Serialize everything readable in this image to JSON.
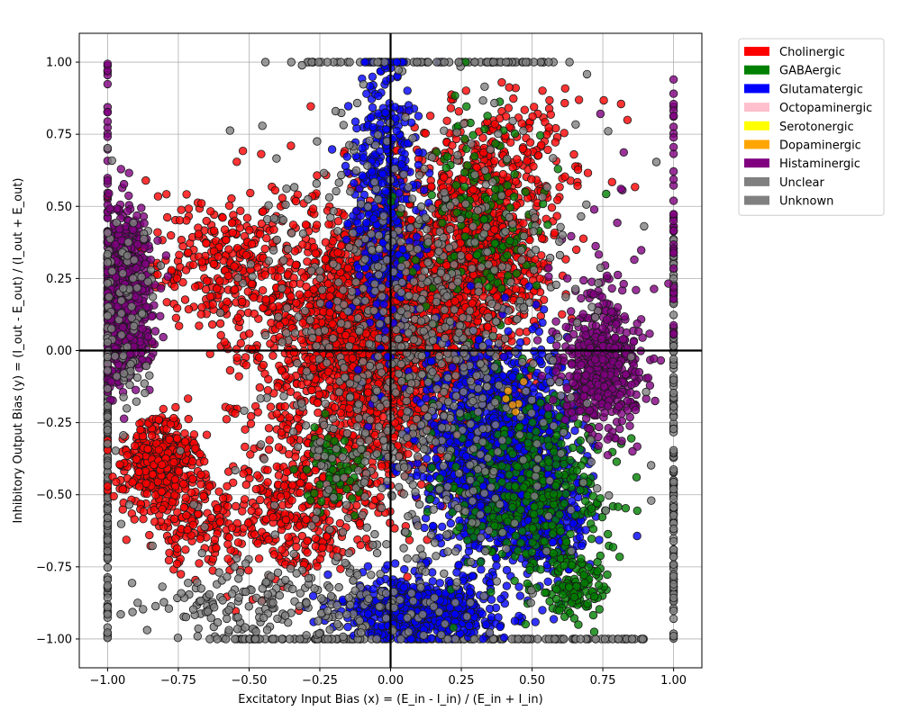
{
  "chart_data": {
    "type": "scatter",
    "title": "",
    "xlabel": "Excitatory Input Bias (x) = (E_in - I_in) / (E_in + I_in)",
    "ylabel": "Inhibitory Output Bias (y) = (I_out - E_out) / (I_out + E_out)",
    "xlim": [
      -1.1,
      1.1
    ],
    "ylim": [
      -1.1,
      1.1
    ],
    "xticks": [
      -1.0,
      -0.75,
      -0.5,
      -0.25,
      0.0,
      0.25,
      0.5,
      0.75,
      1.0
    ],
    "yticks": [
      -1.0,
      -0.75,
      -0.5,
      -0.25,
      0.0,
      0.25,
      0.5,
      0.75,
      1.0
    ],
    "xtick_labels": [
      "−1.00",
      "−0.75",
      "−0.50",
      "−0.25",
      "0.00",
      "0.25",
      "0.50",
      "0.75",
      "1.00"
    ],
    "ytick_labels": [
      "−1.00",
      "−0.75",
      "−0.50",
      "−0.25",
      "0.00",
      "0.25",
      "0.50",
      "0.75",
      "1.00"
    ],
    "grid": true,
    "reference_lines": {
      "x": 0,
      "y": 0
    },
    "legend_position": "outside-top-right",
    "legend": [
      {
        "name": "Cholinergic",
        "color": "#ff0000"
      },
      {
        "name": "GABAergic",
        "color": "#008000"
      },
      {
        "name": "Glutamatergic",
        "color": "#0000ff"
      },
      {
        "name": "Octopaminergic",
        "color": "#ffc0cb"
      },
      {
        "name": "Serotonergic",
        "color": "#ffff00"
      },
      {
        "name": "Dopaminergic",
        "color": "#ffa500"
      },
      {
        "name": "Histaminergic",
        "color": "#800080"
      },
      {
        "name": "Unclear",
        "color": "#808080"
      },
      {
        "name": "Unknown",
        "color": "#808080"
      }
    ],
    "series": [
      {
        "name": "Cholinergic",
        "color": "#ff0000",
        "clusters": [
          {
            "cx": -0.05,
            "cy": 0.05,
            "sx": 0.2,
            "sy": 0.22,
            "n": 2400
          },
          {
            "cx": 0.3,
            "cy": 0.35,
            "sx": 0.12,
            "sy": 0.2,
            "n": 900
          },
          {
            "cx": -0.82,
            "cy": -0.38,
            "sx": 0.07,
            "sy": 0.07,
            "n": 400
          },
          {
            "cx": -0.6,
            "cy": 0.3,
            "sx": 0.14,
            "sy": 0.12,
            "n": 300
          },
          {
            "cx": -0.3,
            "cy": -0.55,
            "sx": 0.14,
            "sy": 0.12,
            "n": 380
          },
          {
            "cx": -0.7,
            "cy": -0.6,
            "sx": 0.1,
            "sy": 0.08,
            "n": 150
          },
          {
            "cx": 0.45,
            "cy": 0.7,
            "sx": 0.15,
            "sy": 0.1,
            "n": 120
          }
        ]
      },
      {
        "name": "Glutamatergic",
        "color": "#0000ff",
        "clusters": [
          {
            "cx": 0.38,
            "cy": -0.35,
            "sx": 0.13,
            "sy": 0.18,
            "n": 1500
          },
          {
            "cx": 0.1,
            "cy": -0.9,
            "sx": 0.13,
            "sy": 0.05,
            "n": 650
          },
          {
            "cx": -0.02,
            "cy": 0.55,
            "sx": 0.06,
            "sy": 0.25,
            "n": 450
          },
          {
            "cx": 0.55,
            "cy": -0.55,
            "sx": 0.08,
            "sy": 0.12,
            "n": 300
          }
        ]
      },
      {
        "name": "GABAergic",
        "color": "#008000",
        "clusters": [
          {
            "cx": 0.5,
            "cy": -0.5,
            "sx": 0.15,
            "sy": 0.17,
            "n": 380
          },
          {
            "cx": 0.65,
            "cy": -0.82,
            "sx": 0.05,
            "sy": 0.06,
            "n": 110
          },
          {
            "cx": 0.3,
            "cy": 0.45,
            "sx": 0.12,
            "sy": 0.2,
            "n": 150
          },
          {
            "cx": -0.2,
            "cy": -0.4,
            "sx": 0.05,
            "sy": 0.08,
            "n": 70
          }
        ]
      },
      {
        "name": "Histaminergic",
        "color": "#800080",
        "clusters": [
          {
            "cx": -0.95,
            "cy": 0.2,
            "sx": 0.05,
            "sy": 0.15,
            "n": 750
          },
          {
            "cx": 0.75,
            "cy": -0.05,
            "sx": 0.07,
            "sy": 0.1,
            "n": 500
          },
          {
            "cx": 0.75,
            "cy": 0.2,
            "sx": 0.1,
            "sy": 0.25,
            "n": 50
          }
        ]
      },
      {
        "name": "Unclear",
        "color": "#808080",
        "clusters": [
          {
            "cx": 0.1,
            "cy": 0.0,
            "sx": 0.28,
            "sy": 0.45,
            "n": 900
          },
          {
            "cx": -0.4,
            "cy": -0.88,
            "sx": 0.25,
            "sy": 0.08,
            "n": 220
          },
          {
            "cx": -0.95,
            "cy": 0.1,
            "sx": 0.05,
            "sy": 0.2,
            "n": 100
          }
        ]
      },
      {
        "name": "Dopaminergic",
        "color": "#ffa500",
        "clusters": [
          {
            "cx": 0.45,
            "cy": -0.17,
            "sx": 0.03,
            "sy": 0.03,
            "n": 6
          }
        ]
      }
    ],
    "edge_points": [
      {
        "color": "#808080",
        "n": 140,
        "x": -1.0,
        "y_range": [
          -1.0,
          0.0
        ]
      },
      {
        "color": "#808080",
        "n": 140,
        "x": 1.0,
        "y_range": [
          -1.0,
          0.4
        ]
      },
      {
        "color": "#800080",
        "n": 40,
        "x": 1.0,
        "y_range": [
          0.0,
          1.0
        ]
      },
      {
        "color": "#808080",
        "n": 160,
        "y": -1.0,
        "x_range": [
          -0.55,
          0.9
        ]
      },
      {
        "color": "#808080",
        "n": 70,
        "y": 1.0,
        "x_range": [
          -0.3,
          0.55
        ]
      },
      {
        "color": "#800080",
        "n": 20,
        "x": -1.0,
        "y_range": [
          0.5,
          1.0
        ]
      }
    ]
  }
}
